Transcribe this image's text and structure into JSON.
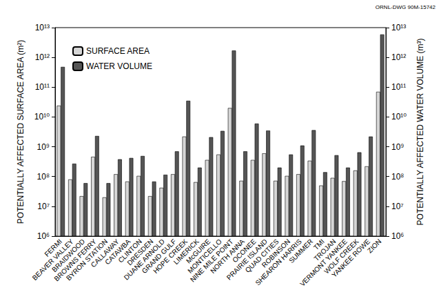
{
  "chart_data": {
    "type": "bar",
    "annotations": [
      "ORNL-DWG 90M-15742"
    ],
    "y_label": "POTENTIALLY AFFECTED SURFACE AREA (m²)",
    "y2_label": "POTENTIALLY AFFECTED WATER VOLUME (m³)",
    "categories": [
      "FERMI",
      "BEAVER VALLEY",
      "BRAIDWOOD",
      "BROWNS FERRY",
      "BYRON STATION",
      "CALLAWAY",
      "CATAWBA",
      "CLINTON",
      "DRESDEN",
      "DUANE ARNOLD",
      "GRAND GULF",
      "HOPE CREEK",
      "LIMERICK",
      "McGUIRE",
      "MONTICELLO",
      "NINE MILE POINT",
      "NORTH ANNA",
      "OCONEE",
      "PRAIRIE ISLAND",
      "QUAD CITIES",
      "ROBINSON",
      "SHEARON HARRIS",
      "SUMMER",
      "TMI",
      "TROJAN",
      "VERMONT YANKEE",
      "WOLF CREEK",
      "YANKEE ROWE",
      "ZION"
    ],
    "series": [
      {
        "name": "SURFACE AREA",
        "color": "#d6d6d6",
        "axis": "y",
        "values": [
          24000000000,
          80000000,
          22000000,
          460000000,
          20000000,
          120000000,
          68000000,
          105000000,
          22000000,
          42000000,
          120000000,
          2200000000,
          65000000,
          360000000,
          550000000,
          20000000000,
          72000000,
          360000000,
          600000000,
          72000000,
          105000000,
          120000000,
          340000000,
          50000000,
          90000000,
          70000000,
          160000000,
          220000000,
          70000000000
        ]
      },
      {
        "name": "WATER VOLUME",
        "color": "#555555",
        "axis": "y2",
        "values": [
          480000000000,
          270000000,
          60000000,
          2300000000,
          60000000,
          380000000,
          420000000,
          490000000,
          68000000,
          115000000,
          700000000,
          35000000000,
          200000000,
          2100000000,
          3400000000,
          1700000000000,
          700000000,
          6000000000,
          3500000000,
          200000000,
          550000000,
          1100000000,
          3600000000,
          140000000,
          520000000,
          200000000,
          650000000,
          2200000000,
          5900000000000
        ]
      }
    ],
    "log": "y",
    "grid": false,
    "legend": "upper left",
    "ylim": [
      1000000,
      10000000000000
    ],
    "yticks": [
      {
        "value": 1000000,
        "label": "10⁶"
      },
      {
        "value": 10000000,
        "label": "10⁷"
      },
      {
        "value": 100000000,
        "label": "10⁸"
      },
      {
        "value": 1000000000,
        "label": "10⁹"
      },
      {
        "value": 10000000000,
        "label": "10¹⁰"
      },
      {
        "value": 100000000000,
        "label": "10¹¹"
      },
      {
        "value": 1000000000000,
        "label": "10¹²"
      },
      {
        "value": 10000000000000,
        "label": "10¹³"
      }
    ],
    "y2lim": [
      1000000,
      10000000000000
    ],
    "y2ticks": [
      {
        "value": 1000000,
        "label": "10⁶"
      },
      {
        "value": 10000000,
        "label": "10⁷"
      },
      {
        "value": 100000000,
        "label": "10⁸"
      },
      {
        "value": 1000000000,
        "label": "10⁹"
      },
      {
        "value": 10000000000,
        "label": "10¹⁰"
      },
      {
        "value": 100000000000,
        "label": "10¹¹"
      },
      {
        "value": 1000000000000,
        "label": "10¹²"
      },
      {
        "value": 10000000000000,
        "label": "10¹³"
      }
    ]
  }
}
